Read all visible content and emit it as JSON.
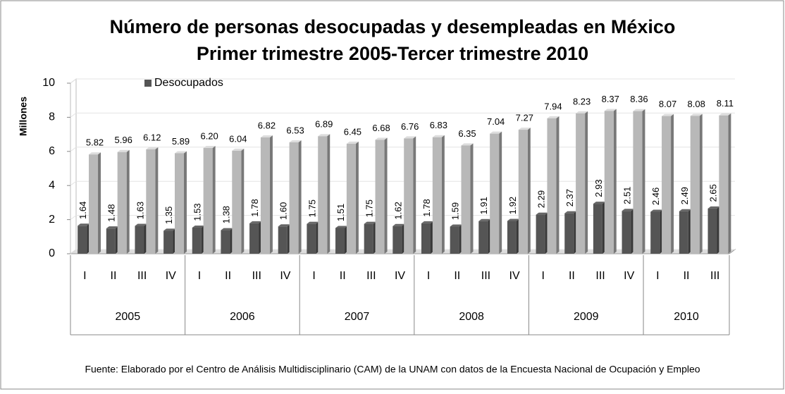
{
  "chart_data": {
    "type": "bar3d",
    "title": "Número de personas desocupadas y desempleadas en México",
    "subtitle": "Primer trimestre 2005-Tercer trimestre 2010",
    "y_label": "Millones",
    "categories": [
      "I",
      "II",
      "III",
      "IV",
      "I",
      "II",
      "III",
      "IV",
      "I",
      "II",
      "III",
      "IV",
      "I",
      "II",
      "III",
      "IV",
      "I",
      "II",
      "III",
      "IV",
      "I",
      "II",
      "III"
    ],
    "groups": [
      "2005",
      "2006",
      "2007",
      "2008",
      "2009",
      "2010"
    ],
    "series": [
      {
        "name": "Desocupados",
        "color": "#555555",
        "values": [
          1.64,
          1.48,
          1.63,
          1.35,
          1.53,
          1.38,
          1.78,
          1.6,
          1.75,
          1.51,
          1.75,
          1.62,
          1.78,
          1.59,
          1.91,
          1.92,
          2.29,
          2.37,
          2.93,
          2.51,
          2.46,
          2.49,
          2.65
        ],
        "value_labels": [
          "1.64",
          "1.48",
          "1.63",
          "1.35",
          "1.53",
          "1.38",
          "1.78",
          "1.60",
          "1.75",
          "1.51",
          "1.75",
          "1.62",
          "1.78",
          "1.59",
          "1.91",
          "1.92",
          "2.29",
          "2.37",
          "2.93",
          "2.51",
          "2.46",
          "2.49",
          "2.65"
        ]
      },
      {
        "color": "#b8b8b8",
        "values": [
          5.82,
          5.96,
          6.12,
          5.89,
          6.2,
          6.04,
          6.82,
          6.53,
          6.89,
          6.45,
          6.68,
          6.76,
          6.83,
          6.35,
          7.04,
          7.27,
          7.94,
          8.23,
          8.37,
          8.36,
          8.07,
          8.08,
          8.11
        ],
        "value_labels": [
          "5.82",
          "5.96",
          "6.12",
          "5.89",
          "6.20",
          "6.04",
          "6.82",
          "6.53",
          "6.89",
          "6.45",
          "6.68",
          "6.76",
          "6.83",
          "6.35",
          "7.04",
          "7.27",
          "7.94",
          "8.23",
          "8.37",
          "8.36",
          "8.07",
          "8.08",
          "8.11"
        ]
      }
    ],
    "ylim": [
      0,
      10
    ],
    "yticks": [
      0,
      2,
      4,
      6,
      8,
      10
    ],
    "grid": true,
    "legend": "top-left",
    "source": "Fuente: Elaborado por el Centro de Análisis Multidisciplinario (CAM) de la UNAM con datos de la Encuesta Nacional de  Ocupación y Empleo"
  }
}
